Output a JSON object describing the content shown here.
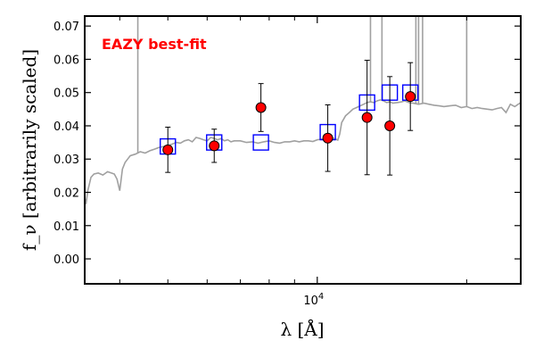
{
  "chart_data": {
    "type": "scatter",
    "title": "",
    "annotation": "EAZY best-fit",
    "xlabel": "λ [Å]",
    "ylabel": "f_ν [arbitrarily scaled]",
    "xscale": "log",
    "xlim": [
      3400,
      25700
    ],
    "ylim": [
      -0.0075,
      0.073
    ],
    "x_tick_labels": [
      {
        "value": 10000,
        "label": "10^4"
      }
    ],
    "y_tick_labels": [
      {
        "value": 0.0,
        "label": "0.00"
      },
      {
        "value": 0.01,
        "label": "0.01"
      },
      {
        "value": 0.02,
        "label": "0.02"
      },
      {
        "value": 0.03,
        "label": "0.03"
      },
      {
        "value": 0.04,
        "label": "0.04"
      },
      {
        "value": 0.05,
        "label": "0.05"
      },
      {
        "value": 0.06,
        "label": "0.06"
      },
      {
        "value": 0.07,
        "label": "0.07"
      }
    ],
    "grid": false,
    "colors": {
      "template": "#a0a0a0",
      "observed": "#ff0000",
      "model": "#0000ff",
      "annotation": "#ff0000"
    },
    "template_spectrum": {
      "name": "EAZY best-fit template",
      "x": [
        3400,
        3420,
        3450,
        3500,
        3550,
        3620,
        3700,
        3780,
        3850,
        3900,
        3950,
        4000,
        4050,
        4100,
        4150,
        4200,
        4300,
        4400,
        4500,
        4600,
        4700,
        4800,
        4900,
        5000,
        5100,
        5200,
        5300,
        5400,
        5500,
        5600,
        5700,
        5800,
        5900,
        6000,
        6100,
        6200,
        6300,
        6400,
        6500,
        6600,
        6700,
        6800,
        7000,
        7200,
        7400,
        7600,
        7800,
        8000,
        8200,
        8400,
        8600,
        8800,
        9000,
        9200,
        9400,
        9600,
        9800,
        10000,
        10200,
        10400,
        10600,
        10800,
        10900,
        11000,
        11100,
        11200,
        11400,
        11600,
        11800,
        12000,
        12200,
        12400,
        12600,
        12800,
        13000,
        13200,
        13400,
        13600,
        13800,
        14000,
        14200,
        14500,
        14800,
        15000,
        15300,
        15600,
        16000,
        16400,
        16800,
        17200,
        17600,
        18000,
        18500,
        19000,
        19500,
        20000,
        20500,
        21000,
        21500,
        22000,
        22500,
        23000,
        23500,
        24000,
        24500,
        25000,
        25700
      ],
      "y": [
        0.0185,
        0.0165,
        0.0205,
        0.0245,
        0.0255,
        0.0258,
        0.0252,
        0.0262,
        0.0258,
        0.0255,
        0.024,
        0.0205,
        0.027,
        0.029,
        0.03,
        0.031,
        0.0315,
        0.0322,
        0.0318,
        0.0325,
        0.033,
        0.0335,
        0.0338,
        0.034,
        0.0345,
        0.035,
        0.0348,
        0.0355,
        0.0358,
        0.0352,
        0.0365,
        0.0362,
        0.0358,
        0.0355,
        0.0365,
        0.0362,
        0.0358,
        0.0362,
        0.0355,
        0.0358,
        0.0352,
        0.0355,
        0.0355,
        0.035,
        0.0352,
        0.0348,
        0.0352,
        0.0355,
        0.035,
        0.0348,
        0.0352,
        0.0352,
        0.0355,
        0.0352,
        0.0355,
        0.0355,
        0.0353,
        0.0358,
        0.036,
        0.036,
        0.0365,
        0.0362,
        0.036,
        0.0357,
        0.0375,
        0.041,
        0.043,
        0.044,
        0.045,
        0.0455,
        0.046,
        0.0465,
        0.047,
        0.0472,
        0.047,
        0.0475,
        0.0478,
        0.0475,
        0.047,
        0.0472,
        0.0468,
        0.047,
        0.0472,
        0.0475,
        0.047,
        0.0468,
        0.0465,
        0.0468,
        0.0465,
        0.0462,
        0.046,
        0.0458,
        0.046,
        0.0462,
        0.0455,
        0.0458,
        0.0452,
        0.0455,
        0.0452,
        0.045,
        0.0448,
        0.0452,
        0.0455,
        0.044,
        0.0465,
        0.0458,
        0.047
      ]
    },
    "emission_lines": [
      {
        "x": 4350,
        "y_top": 0.073
      },
      {
        "x": 12800,
        "y_top": 0.073
      },
      {
        "x": 13500,
        "y_top": 0.073
      },
      {
        "x": 15800,
        "y_top": 0.073
      },
      {
        "x": 16000,
        "y_top": 0.073
      },
      {
        "x": 16300,
        "y_top": 0.073
      },
      {
        "x": 20000,
        "y_top": 0.073
      }
    ],
    "series": [
      {
        "name": "observed",
        "marker": "circle",
        "points": [
          {
            "x": 5000,
            "y": 0.0328,
            "err_low": 0.0068,
            "err_high": 0.0068
          },
          {
            "x": 6200,
            "y": 0.034,
            "err_low": 0.005,
            "err_high": 0.005
          },
          {
            "x": 7700,
            "y": 0.0455,
            "err_low": 0.0072,
            "err_high": 0.0072
          },
          {
            "x": 10500,
            "y": 0.0363,
            "err_low": 0.01,
            "err_high": 0.01
          },
          {
            "x": 12600,
            "y": 0.0425,
            "err_low": 0.0172,
            "err_high": 0.0172
          },
          {
            "x": 14000,
            "y": 0.04,
            "err_low": 0.0148,
            "err_high": 0.0148
          },
          {
            "x": 15400,
            "y": 0.0488,
            "err_low": 0.0102,
            "err_high": 0.0102
          }
        ]
      },
      {
        "name": "model",
        "marker": "square",
        "points": [
          {
            "x": 5000,
            "y": 0.0338
          },
          {
            "x": 6200,
            "y": 0.035
          },
          {
            "x": 7700,
            "y": 0.035
          },
          {
            "x": 10500,
            "y": 0.0381
          },
          {
            "x": 12600,
            "y": 0.047
          },
          {
            "x": 14000,
            "y": 0.05
          },
          {
            "x": 15400,
            "y": 0.05
          }
        ]
      }
    ]
  }
}
